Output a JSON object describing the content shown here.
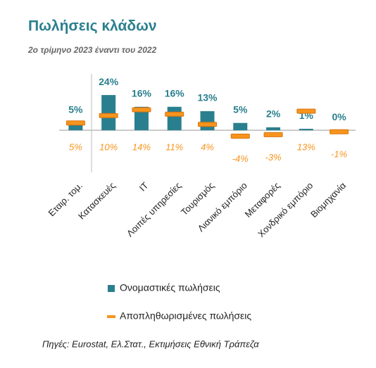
{
  "chart_data": {
    "type": "bar",
    "title": "Πωλήσεις κλάδων",
    "subtitle": "2ο τρίμηνο 2023 έναντι του 2022",
    "source": "Πηγές: Eurostat, Ελ.Στατ., Εκτιμήσεις Εθνική Τράπεζα",
    "categories": [
      "Εταιρ. τομ.",
      "Κατασκευές",
      "IT",
      "Λοιπές υπηρεσίες",
      "Τουρισμός",
      "Λιανικό εμπόριο",
      "Μεταφορές",
      "Χονδρικό εμπόριο",
      "Βιομηχανία"
    ],
    "series": [
      {
        "name": "Ονομαστικές πωλήσεις",
        "color": "#2a7f8e",
        "mark": "bar",
        "values": [
          5,
          24,
          16,
          16,
          13,
          5,
          2,
          1,
          0
        ],
        "value_labels": [
          "5%",
          "24%",
          "16%",
          "16%",
          "13%",
          "5%",
          "2%",
          "1%",
          "0%"
        ]
      },
      {
        "name": "Αποπληθωρισμένες πωλήσεις",
        "color": "#f7941d",
        "mark": "dash",
        "values": [
          5,
          10,
          14,
          11,
          4,
          -4,
          -3,
          13,
          -1
        ],
        "value_labels": [
          "5%",
          "10%",
          "14%",
          "11%",
          "4%",
          "-4%",
          "-3%",
          "13%",
          "-1%"
        ]
      }
    ],
    "ylim": [
      -10,
      25
    ]
  }
}
